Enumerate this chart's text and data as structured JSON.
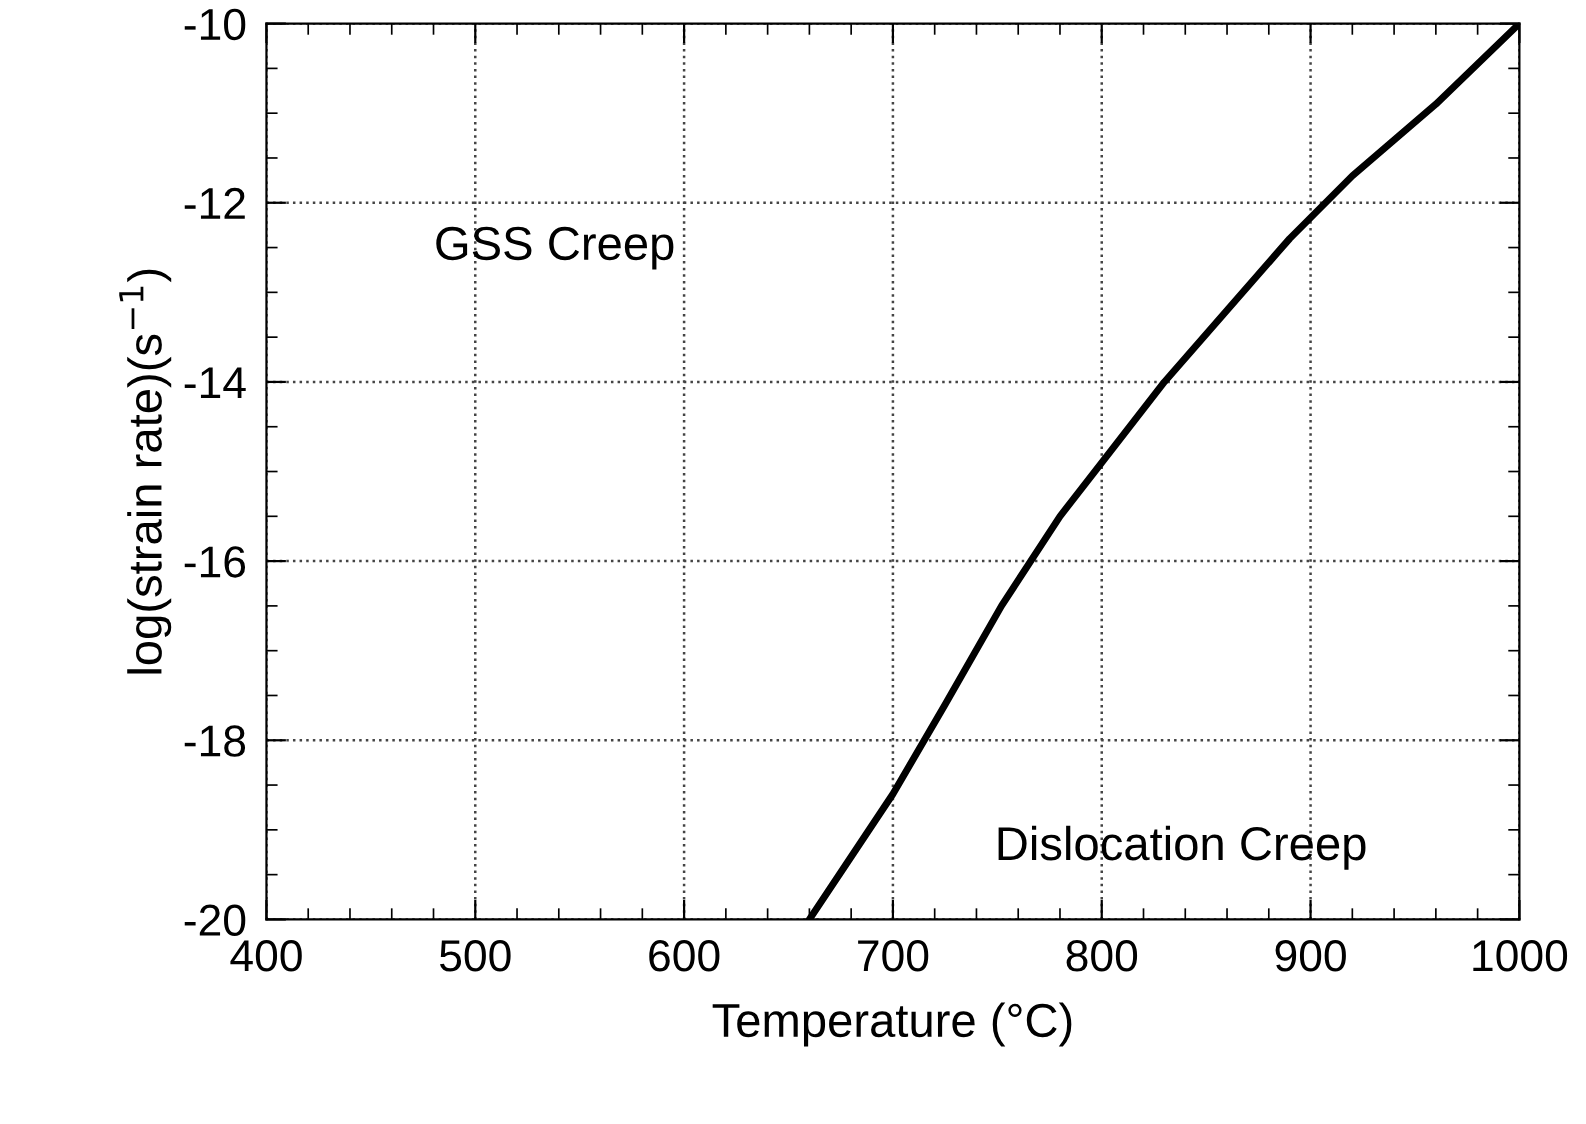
{
  "chart_data": {
    "type": "line",
    "xlabel": "Temperature (°C)",
    "ylabel": "log(strain rate)(s$^{−1}$)",
    "x": [
      660,
      680,
      700,
      725,
      752,
      780,
      800,
      830,
      860,
      890,
      920,
      960,
      1000
    ],
    "series": [
      {
        "color": "#000000",
        "values": [
          -20,
          -19.3,
          -18.6,
          -17.6,
          -16.5,
          -15.5,
          -14.9,
          -14.0,
          -13.2,
          -12.4,
          -11.7,
          -10.9,
          -10
        ]
      }
    ],
    "xlim": [
      400,
      1000
    ],
    "ylim": [
      -20,
      -10
    ],
    "xticks": [
      400,
      500,
      600,
      700,
      800,
      900,
      1000
    ],
    "yticks": [
      -20,
      -18,
      -16,
      -14,
      -12,
      -10
    ],
    "grid": true,
    "line_style": "solid",
    "marker": "none",
    "annotations": [
      "GSS Creep",
      "Dislocation Creep"
    ]
  }
}
